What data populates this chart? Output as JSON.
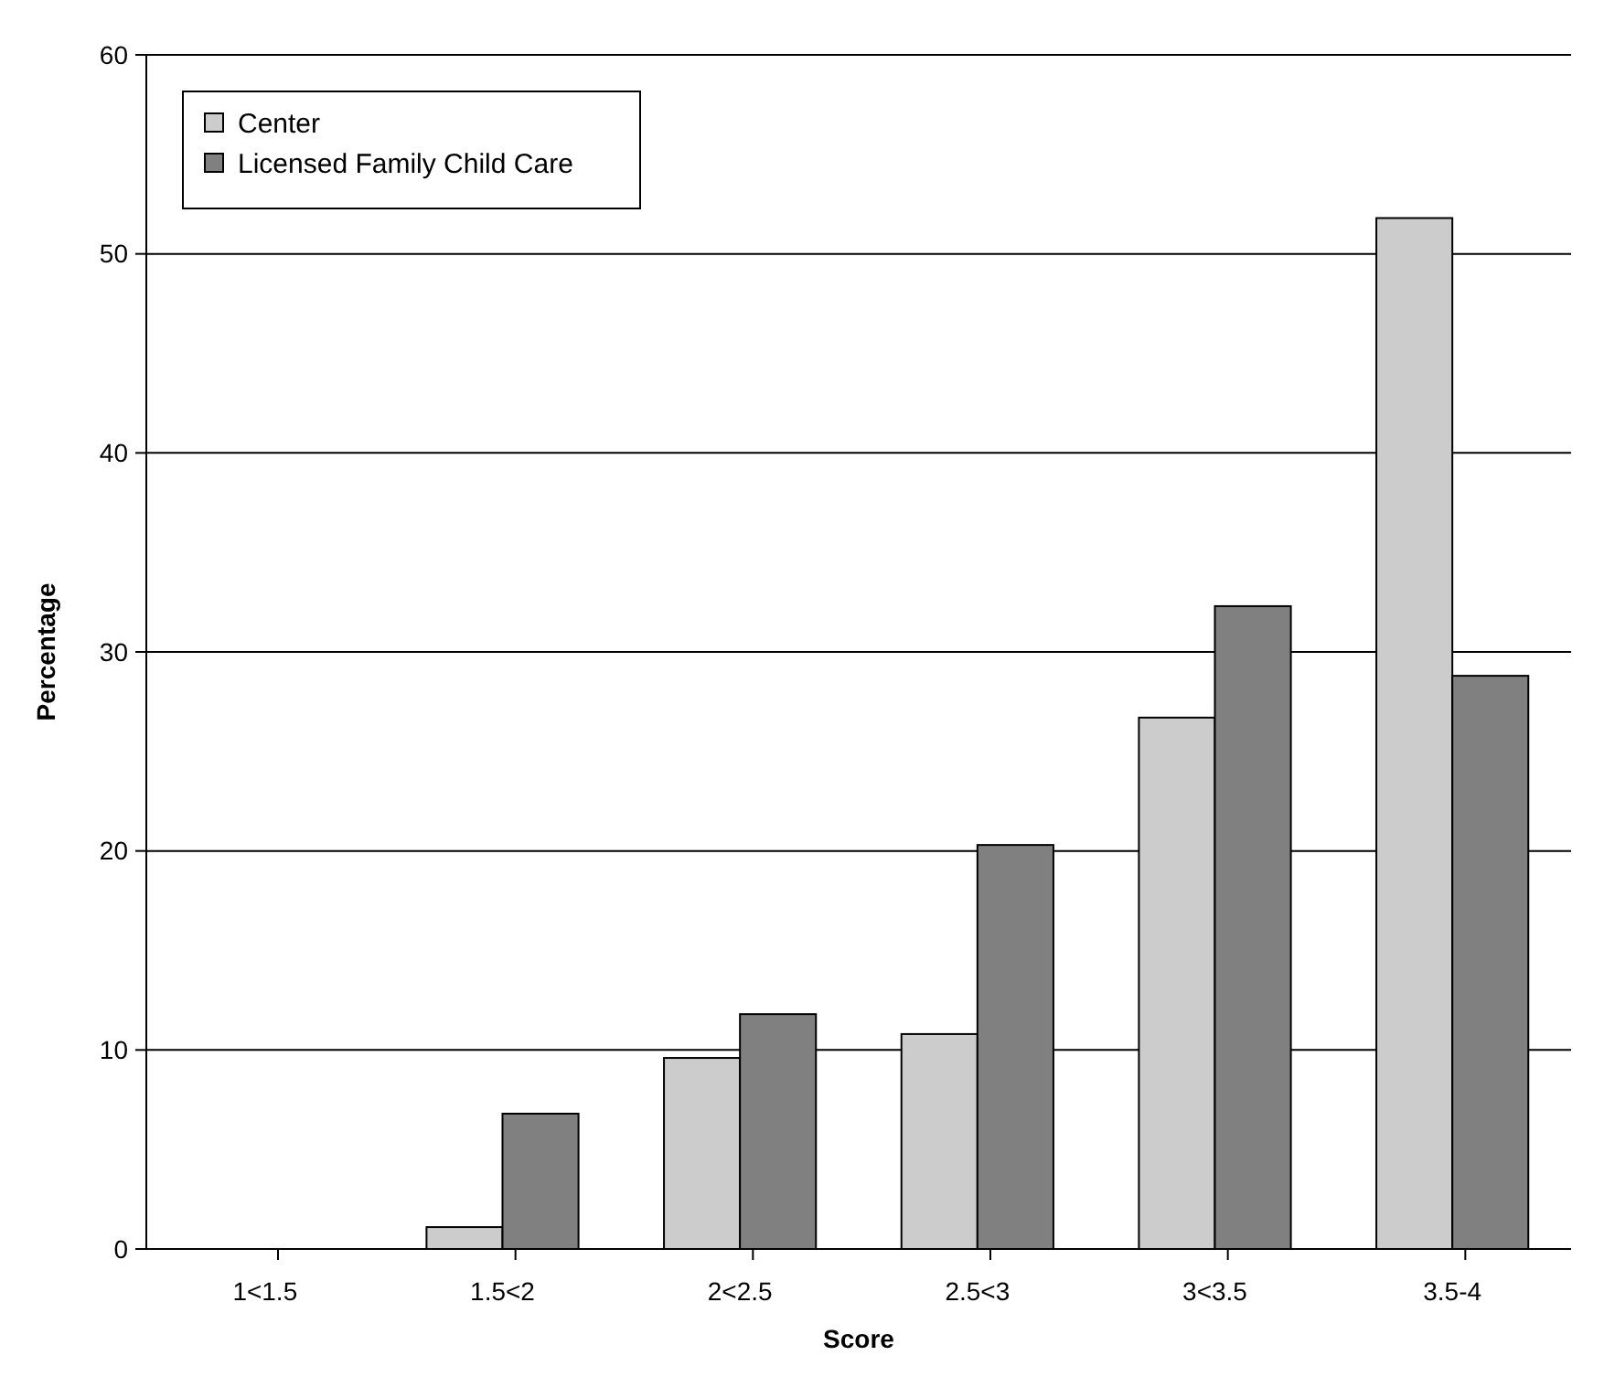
{
  "chart_data": {
    "type": "bar",
    "xlabel": "Score",
    "ylabel": "Percentage",
    "categories": [
      "1<1.5",
      "1.5<2",
      "2<2.5",
      "2.5<3",
      "3<3.5",
      "3.5-4"
    ],
    "series": [
      {
        "name": "Center",
        "color": "#cccccc",
        "values": [
          0,
          1.1,
          9.6,
          10.8,
          26.7,
          51.8
        ]
      },
      {
        "name": "Licensed Family Child Care",
        "color": "#808080",
        "values": [
          0,
          6.8,
          11.8,
          20.3,
          32.3,
          28.8
        ]
      }
    ],
    "ylim": [
      0,
      60
    ],
    "yticks": [
      0,
      10,
      20,
      30,
      40,
      50,
      60
    ],
    "grid": "y",
    "legend": "top left"
  }
}
